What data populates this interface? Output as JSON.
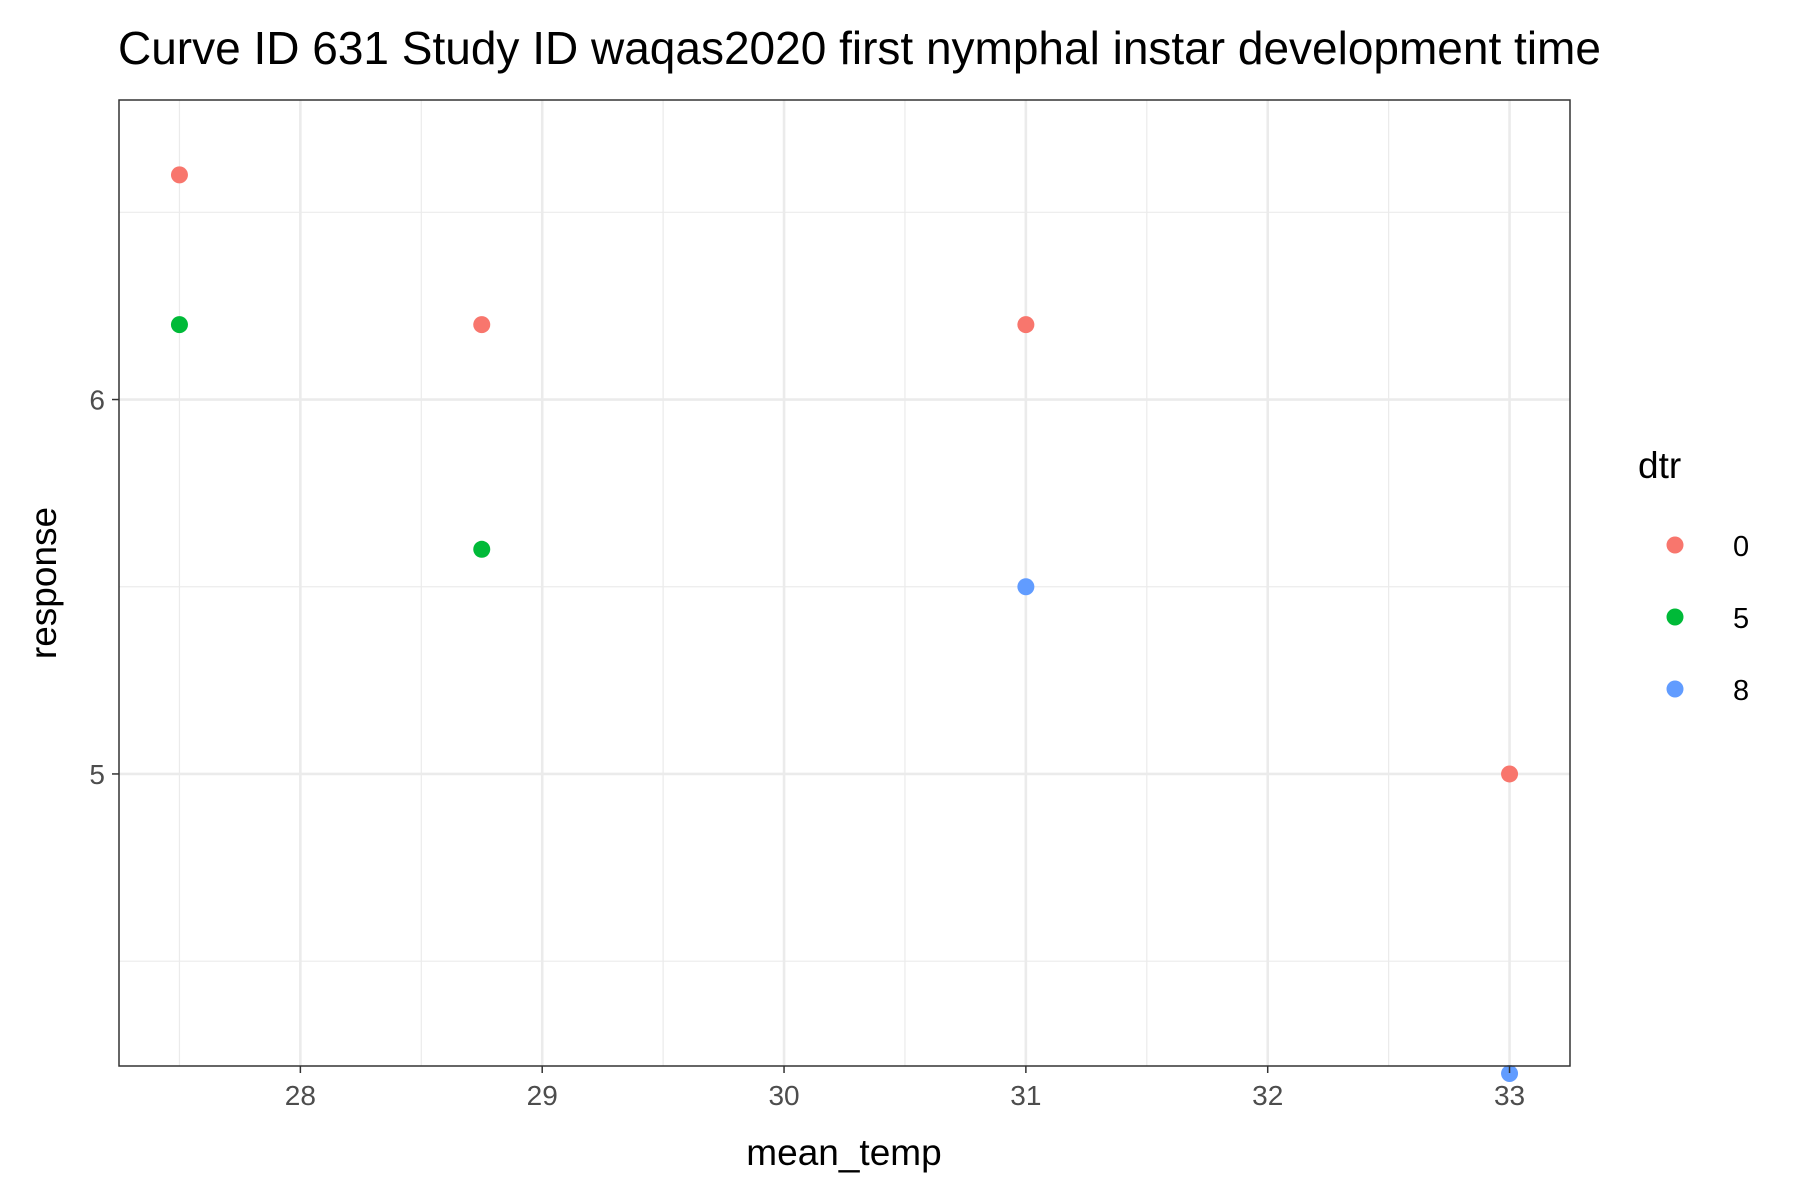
{
  "chart_data": {
    "type": "scatter",
    "title": "Curve ID 631 Study ID waqas2020 first nymphal instar development time",
    "xlabel": "mean_temp",
    "ylabel": "response",
    "xlim": [
      27.25,
      33.25
    ],
    "ylim": [
      4.22,
      6.8
    ],
    "x_ticks": [
      28,
      29,
      30,
      31,
      32,
      33
    ],
    "y_ticks": [
      5,
      6
    ],
    "grid": true,
    "legend": {
      "title": "dtr",
      "position": "right"
    },
    "series": [
      {
        "name": "0",
        "color": "#F8766D",
        "points": [
          {
            "x": 27.5,
            "y": 6.6
          },
          {
            "x": 28.75,
            "y": 6.2
          },
          {
            "x": 31,
            "y": 6.2
          },
          {
            "x": 33,
            "y": 5.0
          }
        ]
      },
      {
        "name": "5",
        "color": "#00BA38",
        "points": [
          {
            "x": 27.5,
            "y": 6.2
          },
          {
            "x": 28.75,
            "y": 5.6
          }
        ]
      },
      {
        "name": "8",
        "color": "#619CFF",
        "points": [
          {
            "x": 31,
            "y": 5.5
          },
          {
            "x": 33,
            "y": 4.2
          }
        ]
      }
    ]
  }
}
